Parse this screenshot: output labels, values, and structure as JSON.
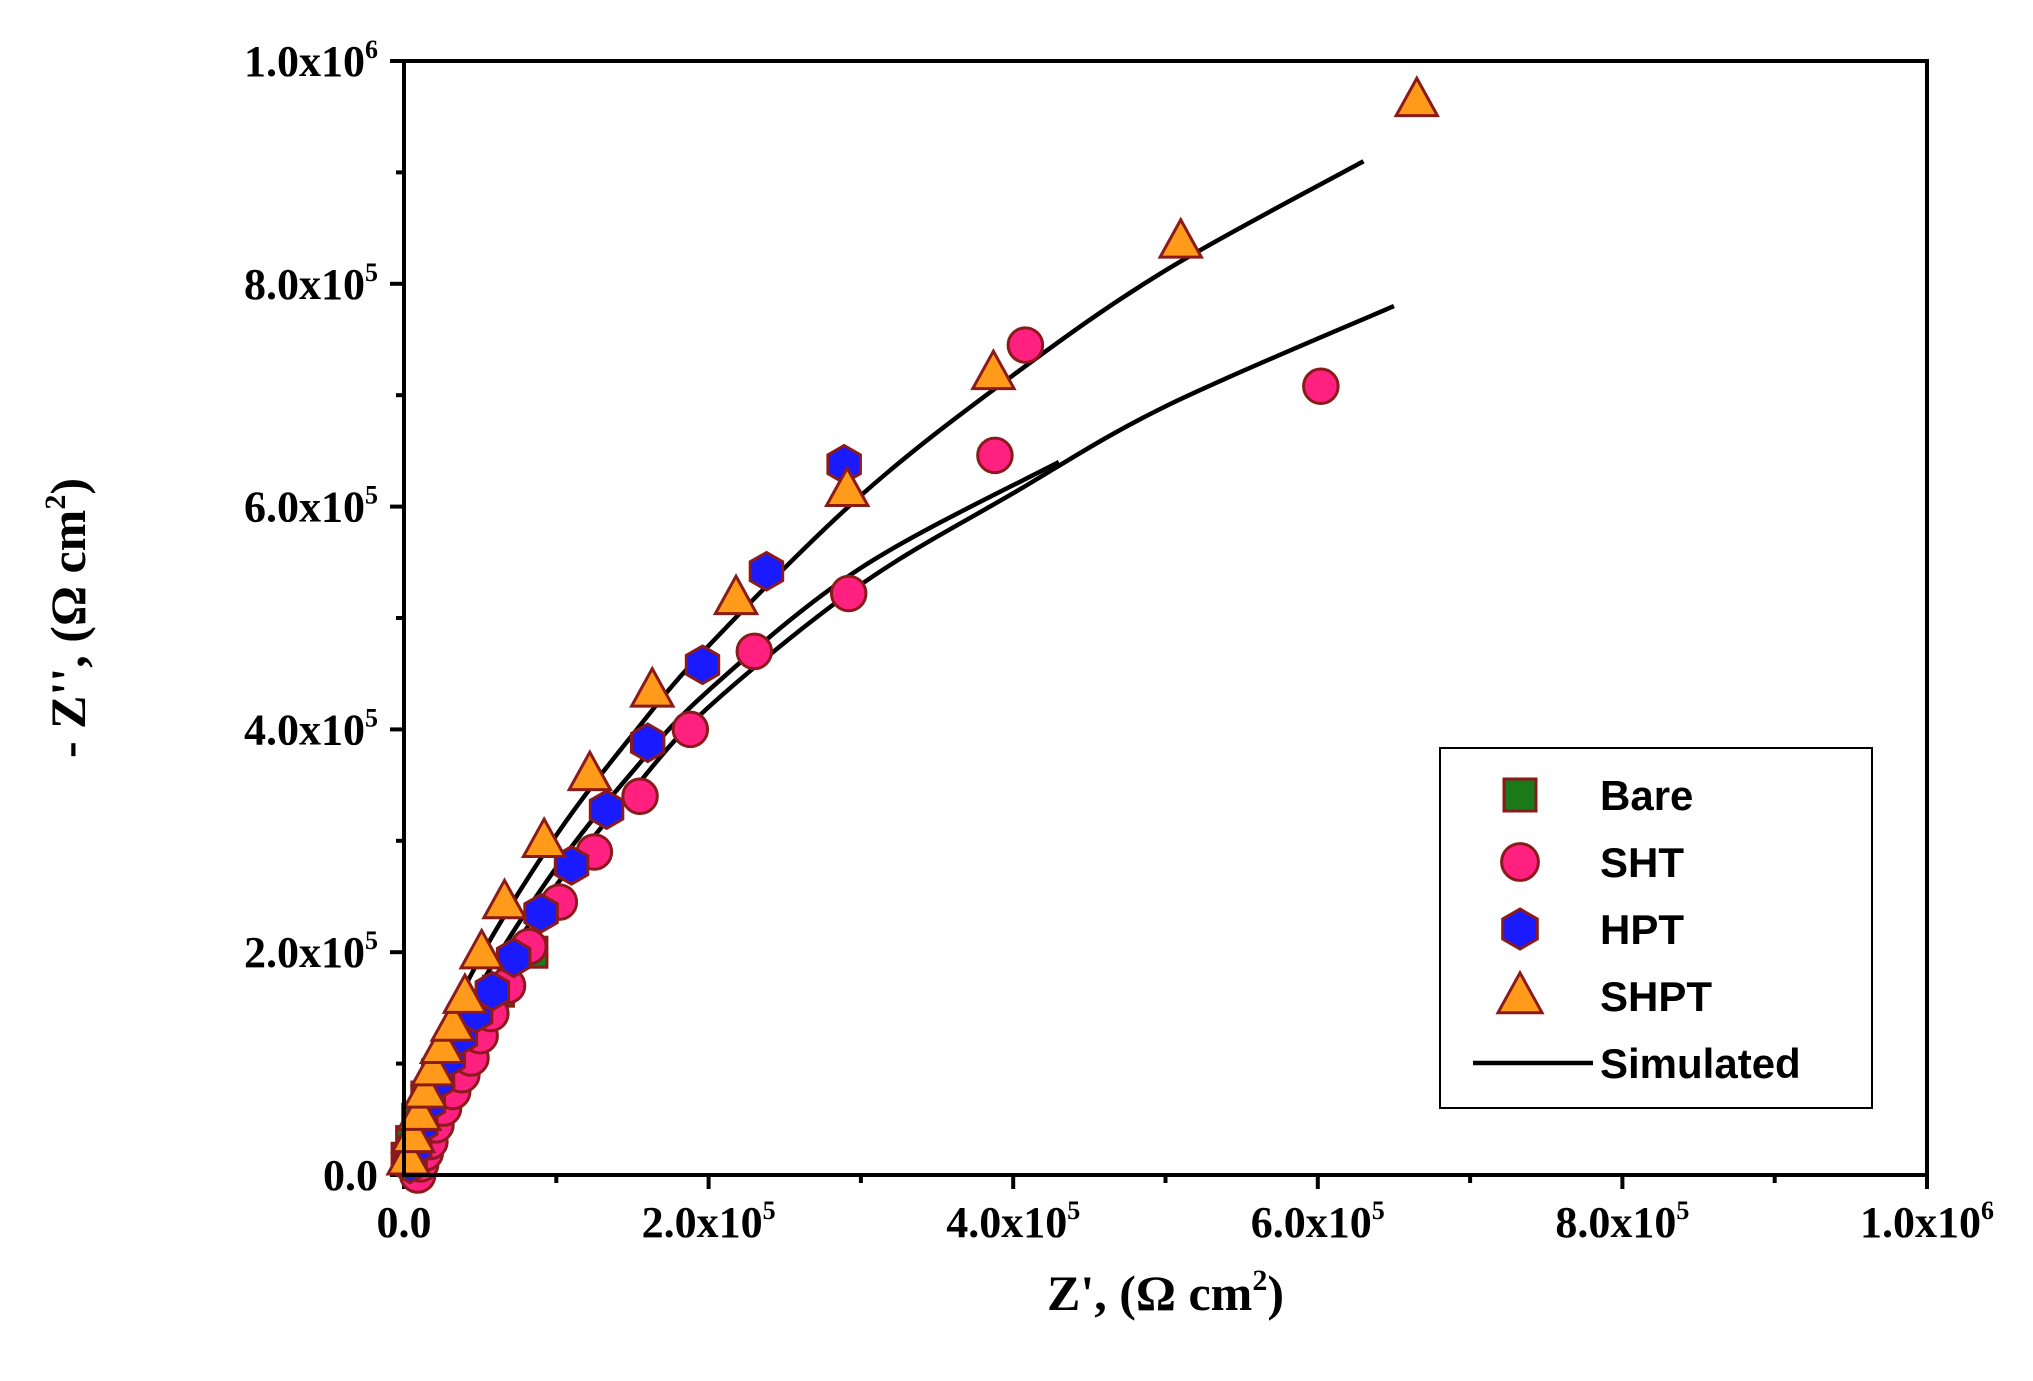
{
  "chart_data": {
    "type": "scatter",
    "title": "",
    "xlabel": "Z', (Ω cm2)",
    "ylabel": "- Z'', (Ω cm2)",
    "xlabel_parts": {
      "main": "Z', (Ω cm",
      "sup": "2",
      "end": ")"
    },
    "ylabel_parts": {
      "main": "- Z'', (Ω cm",
      "sup": "2",
      "end": ")"
    },
    "xlim": [
      0,
      1000000
    ],
    "ylim": [
      0,
      1000000
    ],
    "x_ticks": [
      {
        "value": 0,
        "mant": "0.0",
        "exp": ""
      },
      {
        "value": 200000,
        "mant": "2.0x10",
        "exp": "5"
      },
      {
        "value": 400000,
        "mant": "4.0x10",
        "exp": "5"
      },
      {
        "value": 600000,
        "mant": "6.0x10",
        "exp": "5"
      },
      {
        "value": 800000,
        "mant": "8.0x10",
        "exp": "5"
      },
      {
        "value": 1000000,
        "mant": "1.0x10",
        "exp": "6"
      }
    ],
    "y_ticks": [
      {
        "value": 0,
        "mant": "0.0",
        "exp": ""
      },
      {
        "value": 200000,
        "mant": "2.0x10",
        "exp": "5"
      },
      {
        "value": 400000,
        "mant": "4.0x10",
        "exp": "5"
      },
      {
        "value": 600000,
        "mant": "6.0x10",
        "exp": "5"
      },
      {
        "value": 800000,
        "mant": "8.0x10",
        "exp": "5"
      },
      {
        "value": 1000000,
        "mant": "1.0x10",
        "exp": "6"
      }
    ],
    "legend_position": "lower-right",
    "series": [
      {
        "name": "Bare",
        "marker": "square",
        "fill": "#1a7a1a",
        "stroke": "#8b1a1a",
        "x": [
          2000,
          5000,
          9000,
          15000,
          22000,
          32000,
          45000,
          62000,
          84000
        ],
        "y": [
          15000,
          30000,
          50000,
          70000,
          90000,
          115000,
          140000,
          165000,
          200000
        ]
      },
      {
        "name": "SHT",
        "marker": "circle",
        "fill": "#ff2080",
        "stroke": "#8b1a1a",
        "x": [
          9000,
          11000,
          14000,
          17000,
          21000,
          26000,
          32000,
          38000,
          44000,
          50000,
          57000,
          68000,
          82000,
          102000,
          125000,
          155000,
          188000,
          230000,
          292000,
          388000,
          408000,
          602000
        ],
        "y": [
          0,
          10000,
          20000,
          30000,
          45000,
          60000,
          75000,
          90000,
          105000,
          125000,
          145000,
          170000,
          205000,
          245000,
          290000,
          340000,
          400000,
          470000,
          522000,
          646000,
          745000,
          708000
        ]
      },
      {
        "name": "HPT",
        "marker": "hexagon",
        "fill": "#1a1aff",
        "stroke": "#8b1a1a",
        "x": [
          4000,
          7000,
          11000,
          16000,
          22000,
          29000,
          37000,
          47000,
          58000,
          72000,
          90000,
          110000,
          133000,
          160000,
          196000,
          238000,
          289000
        ],
        "y": [
          10000,
          25000,
          45000,
          65000,
          85000,
          105000,
          125000,
          145000,
          165000,
          195000,
          235000,
          278000,
          328000,
          388000,
          458000,
          542000,
          638000
        ]
      },
      {
        "name": "SHPT",
        "marker": "triangle",
        "fill": "#ff9a1a",
        "stroke": "#8b1a1a",
        "x": [
          3000,
          6000,
          10000,
          14000,
          19000,
          25000,
          32000,
          40000,
          51000,
          66000,
          92000,
          122000,
          163000,
          218000,
          291000,
          387000,
          510000,
          665000
        ],
        "y": [
          15000,
          35000,
          55000,
          75000,
          95000,
          115000,
          135000,
          160000,
          200000,
          245000,
          300000,
          360000,
          435000,
          518000,
          615000,
          720000,
          838000,
          965000
        ]
      }
    ],
    "fits": [
      {
        "name": "Simulated",
        "color": "#000000",
        "x": [
          0,
          20000,
          50000,
          100000,
          150000,
          200000,
          300000,
          400000,
          500000,
          630000
        ],
        "y": [
          0,
          105000,
          195000,
          305000,
          395000,
          475000,
          610000,
          718000,
          812000,
          910000
        ]
      },
      {
        "name": "Simulated",
        "color": "#000000",
        "x": [
          0,
          20000,
          50000,
          100000,
          150000,
          200000,
          300000,
          400000,
          500000,
          650000
        ],
        "y": [
          0,
          70000,
          155000,
          260000,
          345000,
          420000,
          530000,
          612000,
          690000,
          780000
        ]
      },
      {
        "name": "Simulated",
        "color": "#000000",
        "x": [
          0,
          20000,
          50000,
          100000,
          150000,
          200000,
          300000,
          430000
        ],
        "y": [
          0,
          88000,
          170000,
          276000,
          362000,
          435000,
          545000,
          640000
        ]
      }
    ],
    "legend": [
      {
        "label": "Bare",
        "marker": "square",
        "fill": "#1a7a1a",
        "stroke": "#8b1a1a"
      },
      {
        "label": "SHT",
        "marker": "circle",
        "fill": "#ff2080",
        "stroke": "#8b1a1a"
      },
      {
        "label": "HPT",
        "marker": "hexagon",
        "fill": "#1a1aff",
        "stroke": "#8b1a1a"
      },
      {
        "label": "SHPT",
        "marker": "triangle",
        "fill": "#ff9a1a",
        "stroke": "#8b1a1a"
      },
      {
        "label": "Simulated",
        "marker": "line",
        "fill": "#000000",
        "stroke": "#000000"
      }
    ]
  }
}
